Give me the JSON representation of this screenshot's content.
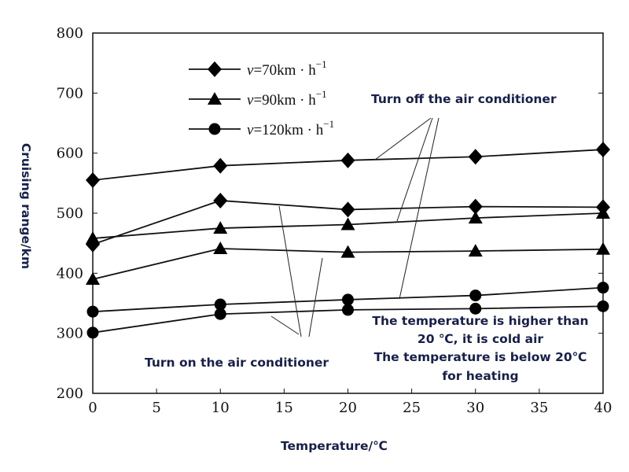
{
  "chart_data": {
    "type": "line",
    "xlabel": "Temperature/℃",
    "ylabel": "Cruising range/km",
    "xlim": [
      0,
      40
    ],
    "ylim": [
      200,
      800
    ],
    "xticks": [
      "0",
      "5",
      "10",
      "15",
      "20",
      "25",
      "30",
      "35",
      "40"
    ],
    "yticks": [
      "200",
      "300",
      "400",
      "500",
      "600",
      "700",
      "800"
    ],
    "grid": false,
    "legend_placement": "top-left",
    "x": [
      0,
      10,
      20,
      30,
      40
    ],
    "legend": [
      {
        "label_v": "v",
        "label_rest": "=70km · h",
        "sup": "−1",
        "marker": "diamond"
      },
      {
        "label_v": "v",
        "label_rest": "=90km · h",
        "sup": "−1",
        "marker": "triangle"
      },
      {
        "label_v": "v",
        "label_rest": "=120km · h",
        "sup": "−1",
        "marker": "circle"
      }
    ],
    "series": [
      {
        "marker": "diamond",
        "condition": "off",
        "values": [
          555,
          579,
          588,
          594,
          606
        ]
      },
      {
        "marker": "diamond",
        "condition": "on",
        "values": [
          448,
          521,
          506,
          511,
          510
        ]
      },
      {
        "marker": "triangle",
        "condition": "off",
        "values": [
          458,
          475,
          481,
          492,
          500
        ]
      },
      {
        "marker": "triangle",
        "condition": "on",
        "values": [
          390,
          441,
          435,
          437,
          440
        ]
      },
      {
        "marker": "circle",
        "condition": "off",
        "values": [
          336,
          348,
          356,
          363,
          376
        ]
      },
      {
        "marker": "circle",
        "condition": "on",
        "values": [
          301,
          332,
          339,
          341,
          345
        ]
      }
    ],
    "annotations": {
      "ac_off": "Turn off the air conditioner",
      "ac_on": "Turn on the air conditioner",
      "note1": "The temperature is higher than",
      "note2": "20 ℃, it is cold air",
      "note3": "The temperature is below 20℃",
      "note4": "for heating"
    }
  }
}
